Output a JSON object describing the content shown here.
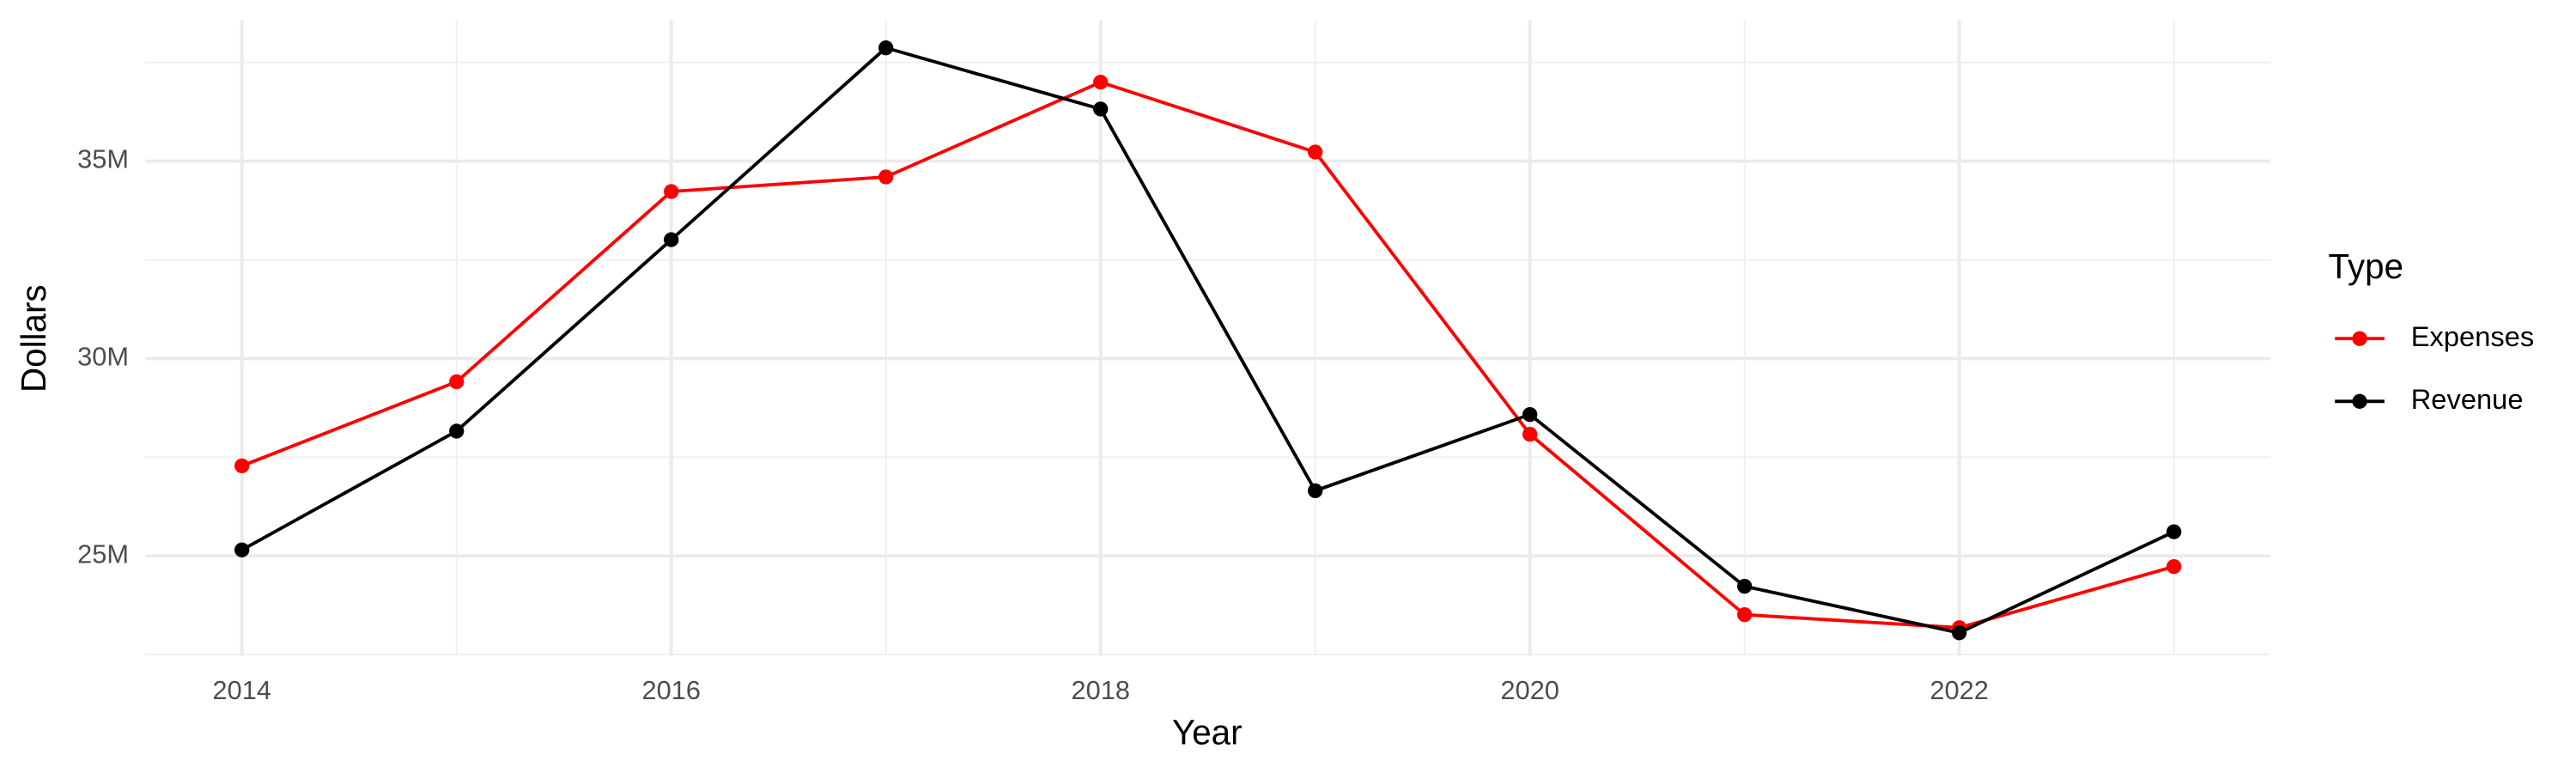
{
  "chart_data": {
    "type": "line",
    "x_label": "Year",
    "y_label": "Dollars",
    "legend_title": "Type",
    "x": [
      2014,
      2015,
      2016,
      2017,
      2018,
      2019,
      2020,
      2021,
      2022,
      2023
    ],
    "series": [
      {
        "name": "Expenses",
        "color": "#ff0000",
        "values": [
          27280000,
          29410000,
          34230000,
          34600000,
          37000000,
          35230000,
          28080000,
          23510000,
          23180000,
          24730000
        ]
      },
      {
        "name": "Revenue",
        "color": "#000000",
        "values": [
          25150000,
          28160000,
          33010000,
          37870000,
          36320000,
          26650000,
          28580000,
          24230000,
          23050000,
          25610000
        ]
      }
    ],
    "xlim": [
      2013.55,
      2023.45
    ],
    "xticks": [
      2014,
      2016,
      2018,
      2020,
      2022
    ],
    "ylim": [
      22470000,
      38580000
    ],
    "yticks": [
      {
        "value": 25000000,
        "label": "25M"
      },
      {
        "value": 30000000,
        "label": "30M"
      },
      {
        "value": 35000000,
        "label": "35M"
      }
    ],
    "grid": true,
    "legend": "right"
  }
}
